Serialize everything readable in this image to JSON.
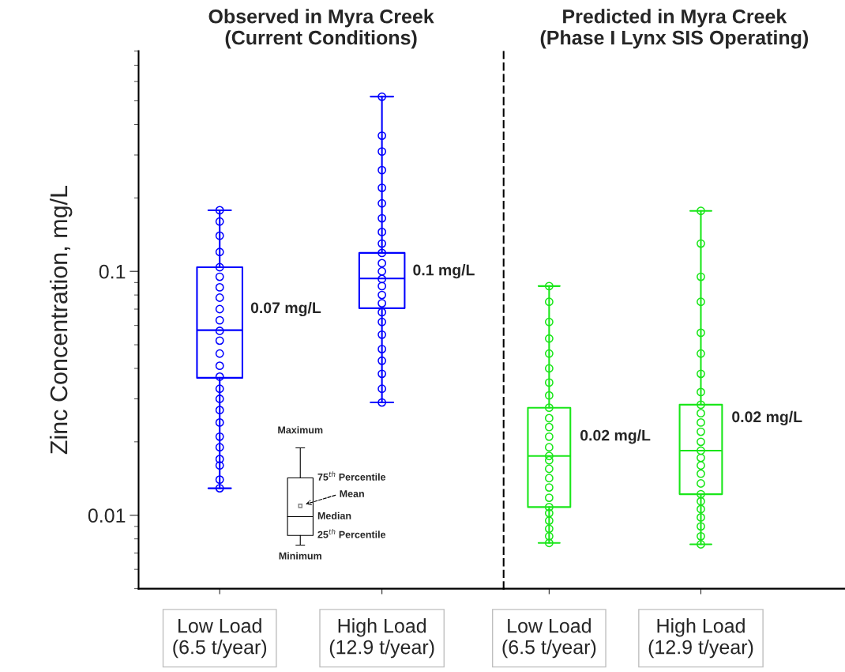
{
  "chart_data": [
    {
      "type": "box",
      "title": "Observed in Myra Creek\n(Current Conditions)",
      "ylabel": "Zinc Concentration, mg/L",
      "categories": [
        "Low Load\n(6.5 t/year)",
        "High Load\n(12.9 t/year)"
      ],
      "colors": [
        "#0000ff",
        "#0000ff"
      ],
      "boxes": [
        {
          "low": 0.0129,
          "q1": 0.0366,
          "median": 0.0574,
          "q3": 0.104,
          "high": 0.178
        },
        {
          "low": 0.029,
          "q1": 0.0706,
          "median": 0.0935,
          "q3": 0.119,
          "high": 0.52
        }
      ],
      "series": [
        {
          "type": "scatter",
          "color": "#0000ff",
          "x": [
            "Low Load\n(6.5 t/year)",
            "Low Load\n(6.5 t/year)",
            "Low Load\n(6.5 t/year)",
            "Low Load\n(6.5 t/year)",
            "Low Load\n(6.5 t/year)",
            "Low Load\n(6.5 t/year)",
            "Low Load\n(6.5 t/year)",
            "Low Load\n(6.5 t/year)",
            "Low Load\n(6.5 t/year)",
            "Low Load\n(6.5 t/year)",
            "Low Load\n(6.5 t/year)",
            "Low Load\n(6.5 t/year)",
            "Low Load\n(6.5 t/year)",
            "Low Load\n(6.5 t/year)",
            "Low Load\n(6.5 t/year)",
            "Low Load\n(6.5 t/year)",
            "Low Load\n(6.5 t/year)",
            "Low Load\n(6.5 t/year)",
            "Low Load\n(6.5 t/year)",
            "Low Load\n(6.5 t/year)",
            "Low Load\n(6.5 t/year)",
            "Low Load\n(6.5 t/year)",
            "Low Load\n(6.5 t/year)",
            "Low Load\n(6.5 t/year)",
            "Low Load\n(6.5 t/year)"
          ],
          "values": [
            0.0129,
            0.014,
            0.016,
            0.017,
            0.019,
            0.021,
            0.024,
            0.027,
            0.03,
            0.033,
            0.037,
            0.041,
            0.046,
            0.052,
            0.057,
            0.063,
            0.07,
            0.078,
            0.086,
            0.095,
            0.104,
            0.12,
            0.14,
            0.16,
            0.178
          ]
        },
        {
          "type": "scatter",
          "color": "#0000ff",
          "x": [
            "High Load\n(12.9 t/year)",
            "High Load\n(12.9 t/year)",
            "High Load\n(12.9 t/year)",
            "High Load\n(12.9 t/year)",
            "High Load\n(12.9 t/year)",
            "High Load\n(12.9 t/year)",
            "High Load\n(12.9 t/year)",
            "High Load\n(12.9 t/year)",
            "High Load\n(12.9 t/year)",
            "High Load\n(12.9 t/year)",
            "High Load\n(12.9 t/year)",
            "High Load\n(12.9 t/year)",
            "High Load\n(12.9 t/year)",
            "High Load\n(12.9 t/year)",
            "High Load\n(12.9 t/year)",
            "High Load\n(12.9 t/year)",
            "High Load\n(12.9 t/year)",
            "High Load\n(12.9 t/year)",
            "High Load\n(12.9 t/year)",
            "High Load\n(12.9 t/year)",
            "High Load\n(12.9 t/year)",
            "High Load\n(12.9 t/year)",
            "High Load\n(12.9 t/year)",
            "High Load\n(12.9 t/year)"
          ],
          "values": [
            0.029,
            0.033,
            0.038,
            0.043,
            0.048,
            0.055,
            0.062,
            0.068,
            0.074,
            0.08,
            0.087,
            0.093,
            0.1,
            0.108,
            0.119,
            0.13,
            0.145,
            0.165,
            0.19,
            0.22,
            0.26,
            0.31,
            0.36,
            0.52
          ]
        }
      ],
      "marker": "circle",
      "log": true,
      "ylim": [
        0.005,
        0.8
      ],
      "yticks": [
        0.01,
        0.1
      ],
      "annotations": [
        {
          "text": "0.07 mg/L",
          "x": "Low Load\n(6.5 t/year)",
          "y": 0.07
        },
        {
          "text": "0.1 mg/L",
          "x": "High Load\n(12.9 t/year)",
          "y": 0.1
        },
        "Maximum",
        "75$^{th}$ Percentile",
        "Mean",
        "Median",
        "25$^{th}$ Percentile",
        "Minimum"
      ]
    },
    {
      "type": "box",
      "title": "Predicted in Myra Creek\n(Phase I Lynx SIS Operating)",
      "categories": [
        "Low Load\n(6.5 t/year)",
        "High Load\n(12.9 t/year)"
      ],
      "colors": [
        "#19e619",
        "#19e619"
      ],
      "boxes": [
        {
          "low": 0.0077,
          "q1": 0.0108,
          "median": 0.0175,
          "q3": 0.0276,
          "high": 0.087
        },
        {
          "low": 0.0076,
          "q1": 0.0122,
          "median": 0.0184,
          "q3": 0.0284,
          "high": 0.177
        }
      ],
      "series": [
        {
          "type": "scatter",
          "color": "#19e619",
          "x": [
            "Low Load\n(6.5 t/year)",
            "Low Load\n(6.5 t/year)",
            "Low Load\n(6.5 t/year)",
            "Low Load\n(6.5 t/year)",
            "Low Load\n(6.5 t/year)",
            "Low Load\n(6.5 t/year)",
            "Low Load\n(6.5 t/year)",
            "Low Load\n(6.5 t/year)",
            "Low Load\n(6.5 t/year)",
            "Low Load\n(6.5 t/year)",
            "Low Load\n(6.5 t/year)",
            "Low Load\n(6.5 t/year)",
            "Low Load\n(6.5 t/year)",
            "Low Load\n(6.5 t/year)",
            "Low Load\n(6.5 t/year)",
            "Low Load\n(6.5 t/year)",
            "Low Load\n(6.5 t/year)",
            "Low Load\n(6.5 t/year)",
            "Low Load\n(6.5 t/year)",
            "Low Load\n(6.5 t/year)",
            "Low Load\n(6.5 t/year)",
            "Low Load\n(6.5 t/year)",
            "Low Load\n(6.5 t/year)",
            "Low Load\n(6.5 t/year)",
            "Low Load\n(6.5 t/year)"
          ],
          "values": [
            0.0077,
            0.0082,
            0.0088,
            0.0095,
            0.0102,
            0.0108,
            0.0118,
            0.013,
            0.0142,
            0.0155,
            0.0168,
            0.0175,
            0.019,
            0.021,
            0.023,
            0.025,
            0.0276,
            0.031,
            0.035,
            0.04,
            0.046,
            0.053,
            0.062,
            0.075,
            0.087
          ]
        },
        {
          "type": "scatter",
          "color": "#19e619",
          "x": [
            "High Load\n(12.9 t/year)",
            "High Load\n(12.9 t/year)",
            "High Load\n(12.9 t/year)",
            "High Load\n(12.9 t/year)",
            "High Load\n(12.9 t/year)",
            "High Load\n(12.9 t/year)",
            "High Load\n(12.9 t/year)",
            "High Load\n(12.9 t/year)",
            "High Load\n(12.9 t/year)",
            "High Load\n(12.9 t/year)",
            "High Load\n(12.9 t/year)",
            "High Load\n(12.9 t/year)",
            "High Load\n(12.9 t/year)",
            "High Load\n(12.9 t/year)",
            "High Load\n(12.9 t/year)",
            "High Load\n(12.9 t/year)",
            "High Load\n(12.9 t/year)",
            "High Load\n(12.9 t/year)",
            "High Load\n(12.9 t/year)",
            "High Load\n(12.9 t/year)",
            "High Load\n(12.9 t/year)",
            "High Load\n(12.9 t/year)",
            "High Load\n(12.9 t/year)",
            "High Load\n(12.9 t/year)",
            "High Load\n(12.9 t/year)"
          ],
          "values": [
            0.0076,
            0.0082,
            0.009,
            0.0098,
            0.0106,
            0.0114,
            0.0122,
            0.0135,
            0.0148,
            0.016,
            0.0172,
            0.0184,
            0.02,
            0.022,
            0.024,
            0.0262,
            0.0284,
            0.032,
            0.038,
            0.046,
            0.056,
            0.075,
            0.095,
            0.13,
            0.177
          ]
        }
      ],
      "marker": "circle",
      "log": true,
      "ylim": [
        0.005,
        0.8
      ],
      "tick_labels": "x",
      "annotations": [
        {
          "text": "0.02 mg/L",
          "x": "Low Load\n(6.5 t/year)",
          "y": 0.021
        },
        {
          "text": "0.02 mg/L",
          "x": "High Load\n(12.9 t/year)",
          "y": 0.025
        }
      ]
    }
  ]
}
